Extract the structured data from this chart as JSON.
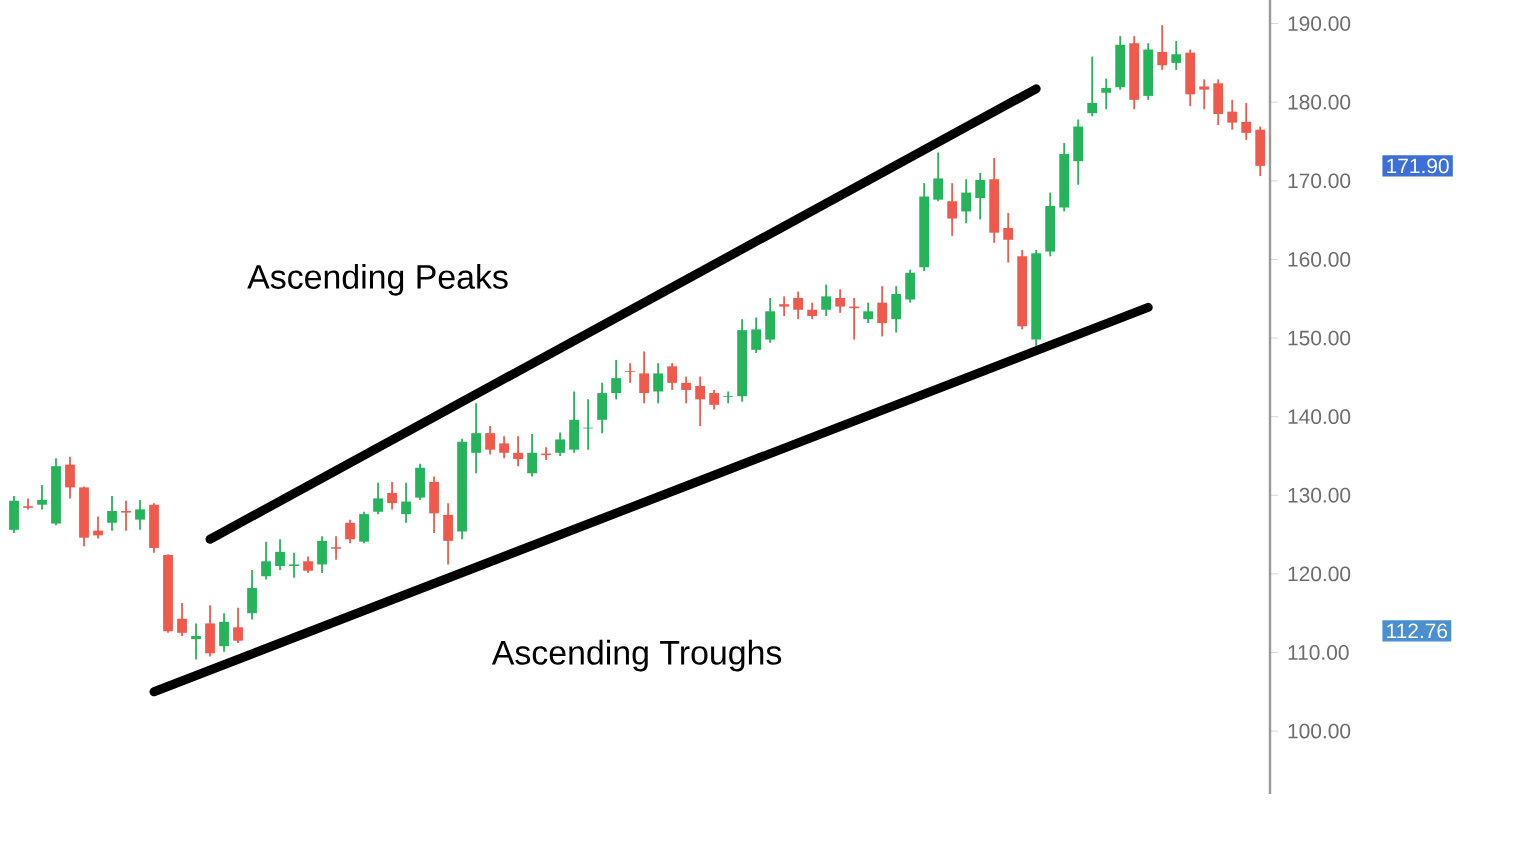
{
  "chart_data": {
    "type": "candlestick",
    "categories": [
      null,
      null,
      null,
      null,
      null,
      null,
      null,
      null,
      null,
      null,
      null,
      null,
      null,
      null,
      null,
      null,
      null,
      null,
      null,
      null,
      null,
      null,
      null,
      null,
      null,
      null,
      null,
      null,
      null,
      null,
      null,
      null,
      null,
      null,
      null,
      null,
      null,
      null,
      null,
      null,
      null,
      null,
      null,
      null,
      null,
      null,
      null,
      null,
      null,
      null,
      null,
      null,
      null,
      null,
      null,
      null,
      null,
      null,
      null,
      null,
      null,
      null,
      null,
      null,
      null,
      null,
      null,
      null,
      null,
      null,
      null,
      null,
      null,
      null,
      null,
      null,
      null,
      null,
      null,
      null,
      null,
      null,
      null,
      null,
      null,
      null,
      null,
      null,
      null,
      null
    ],
    "ohlc": [
      [
        125.6,
        129.9,
        125.2,
        129.3
      ],
      [
        128.6,
        129.6,
        128.2,
        128.4
      ],
      [
        128.8,
        131.3,
        128.2,
        129.4
      ],
      [
        126.4,
        134.7,
        126.2,
        133.7
      ],
      [
        133.9,
        134.9,
        129.6,
        131.0
      ],
      [
        131.0,
        131.1,
        123.5,
        124.6
      ],
      [
        125.5,
        127.3,
        124.5,
        124.9
      ],
      [
        126.5,
        129.9,
        125.5,
        128.0
      ],
      [
        128.0,
        129.3,
        125.5,
        127.8
      ],
      [
        126.9,
        129.4,
        125.6,
        128.2
      ],
      [
        128.8,
        129.0,
        122.7,
        123.3
      ],
      [
        122.4,
        122.5,
        112.5,
        112.7
      ],
      [
        114.3,
        116.3,
        112.1,
        112.5
      ],
      [
        111.7,
        113.7,
        109.1,
        112.1
      ],
      [
        113.7,
        116.0,
        109.5,
        109.9
      ],
      [
        110.8,
        115.0,
        110.1,
        113.9
      ],
      [
        113.2,
        115.7,
        111.2,
        111.5
      ],
      [
        115.0,
        120.5,
        114.2,
        118.2
      ],
      [
        119.7,
        124.1,
        119.3,
        121.6
      ],
      [
        121.0,
        124.4,
        120.5,
        122.8
      ],
      [
        121.0,
        122.7,
        119.5,
        121.2
      ],
      [
        121.6,
        122.2,
        120.1,
        120.4
      ],
      [
        121.2,
        124.8,
        120.1,
        124.2
      ],
      [
        123.4,
        124.8,
        121.8,
        123.2
      ],
      [
        126.5,
        126.9,
        123.9,
        124.4
      ],
      [
        124.1,
        127.9,
        123.9,
        127.6
      ],
      [
        127.9,
        131.6,
        127.6,
        129.6
      ],
      [
        130.3,
        131.7,
        128.2,
        129.0
      ],
      [
        127.6,
        131.6,
        126.5,
        129.2
      ],
      [
        129.7,
        134.0,
        129.4,
        133.5
      ],
      [
        131.7,
        132.4,
        125.2,
        127.7
      ],
      [
        127.5,
        129.0,
        121.2,
        124.2
      ],
      [
        125.4,
        137.2,
        124.4,
        136.8
      ],
      [
        135.4,
        141.7,
        132.8,
        137.9
      ],
      [
        137.9,
        138.8,
        135.2,
        135.8
      ],
      [
        136.6,
        137.5,
        134.7,
        135.4
      ],
      [
        135.4,
        137.5,
        133.7,
        134.6
      ],
      [
        132.8,
        137.8,
        132.4,
        135.4
      ],
      [
        135.3,
        136.1,
        134.5,
        135.1
      ],
      [
        135.4,
        138.0,
        135.0,
        137.1
      ],
      [
        135.8,
        143.2,
        135.4,
        139.6
      ],
      [
        138.5,
        142.2,
        135.8,
        138.6
      ],
      [
        139.6,
        144.3,
        137.9,
        143.0
      ],
      [
        143.0,
        147.2,
        142.2,
        144.9
      ],
      [
        145.8,
        146.8,
        144.3,
        145.7
      ],
      [
        145.5,
        148.3,
        141.7,
        143.0
      ],
      [
        143.2,
        146.8,
        141.7,
        145.5
      ],
      [
        146.4,
        146.8,
        143.4,
        144.3
      ],
      [
        144.3,
        145.1,
        141.7,
        143.4
      ],
      [
        143.9,
        145.1,
        138.8,
        142.2
      ],
      [
        143.0,
        143.4,
        140.9,
        141.5
      ],
      [
        142.5,
        143.2,
        141.7,
        142.6
      ],
      [
        142.6,
        152.4,
        141.9,
        151.0
      ],
      [
        148.5,
        152.6,
        148.1,
        151.1
      ],
      [
        149.8,
        155.1,
        149.4,
        153.4
      ],
      [
        154.3,
        155.3,
        152.8,
        154.0
      ],
      [
        155.1,
        155.9,
        152.4,
        153.6
      ],
      [
        153.6,
        154.5,
        152.4,
        152.8
      ],
      [
        153.6,
        156.8,
        152.8,
        155.3
      ],
      [
        155.1,
        156.2,
        153.2,
        154.0
      ],
      [
        154.0,
        155.1,
        149.8,
        153.8
      ],
      [
        152.4,
        154.5,
        151.9,
        153.4
      ],
      [
        154.5,
        156.6,
        150.2,
        151.9
      ],
      [
        152.4,
        156.6,
        150.7,
        155.6
      ],
      [
        154.9,
        158.7,
        154.5,
        158.3
      ],
      [
        159.0,
        169.7,
        158.5,
        168.0
      ],
      [
        167.6,
        173.6,
        167.4,
        170.3
      ],
      [
        167.4,
        169.7,
        163.0,
        165.2
      ],
      [
        166.1,
        170.2,
        164.6,
        168.5
      ],
      [
        167.8,
        171.0,
        165.1,
        170.1
      ],
      [
        170.2,
        172.9,
        162.1,
        163.4
      ],
      [
        164.0,
        165.9,
        159.6,
        162.5
      ],
      [
        160.4,
        161.2,
        151.1,
        151.5
      ],
      [
        149.8,
        161.2,
        148.9,
        160.8
      ],
      [
        161.0,
        168.5,
        160.4,
        166.8
      ],
      [
        166.6,
        174.8,
        166.1,
        173.4
      ],
      [
        172.5,
        177.8,
        169.5,
        176.9
      ],
      [
        178.6,
        185.8,
        178.2,
        179.9
      ],
      [
        181.2,
        183.0,
        179.1,
        181.8
      ],
      [
        181.9,
        188.4,
        181.6,
        187.3
      ],
      [
        187.5,
        188.4,
        179.1,
        180.3
      ],
      [
        180.8,
        187.5,
        180.3,
        186.7
      ],
      [
        186.4,
        189.8,
        184.1,
        184.7
      ],
      [
        185.0,
        187.8,
        184.1,
        186.1
      ],
      [
        186.3,
        186.7,
        179.5,
        181.0
      ],
      [
        182.0,
        182.9,
        179.1,
        181.6
      ],
      [
        182.4,
        182.9,
        177.1,
        178.5
      ],
      [
        178.8,
        180.3,
        176.5,
        177.4
      ],
      [
        177.5,
        179.9,
        175.2,
        176.1
      ],
      [
        176.5,
        176.9,
        170.6,
        171.9
      ]
    ],
    "colors": [
      "#26b45a",
      "#ef5a4d",
      "#26b45a",
      "#26b45a",
      "#ef5a4d",
      "#ef5a4d",
      "#ef5a4d",
      "#26b45a",
      "#ef5a4d",
      "#26b45a",
      "#ef5a4d",
      "#ef5a4d",
      "#ef5a4d",
      "#26b45a",
      "#ef5a4d",
      "#26b45a",
      "#ef5a4d",
      "#26b45a",
      "#26b45a",
      "#26b45a",
      "#26b45a",
      "#ef5a4d",
      "#26b45a",
      "#ef5a4d",
      "#ef5a4d",
      "#26b45a",
      "#26b45a",
      "#ef5a4d",
      "#26b45a",
      "#26b45a",
      "#ef5a4d",
      "#ef5a4d",
      "#26b45a",
      "#26b45a",
      "#ef5a4d",
      "#ef5a4d",
      "#ef5a4d",
      "#26b45a",
      "#ef5a4d",
      "#26b45a",
      "#26b45a",
      "#26b45a",
      "#26b45a",
      "#26b45a",
      "#ef5a4d",
      "#ef5a4d",
      "#26b45a",
      "#ef5a4d",
      "#ef5a4d",
      "#ef5a4d",
      "#ef5a4d",
      "#26b45a",
      "#26b45a",
      "#26b45a",
      "#26b45a",
      "#ef5a4d",
      "#ef5a4d",
      "#ef5a4d",
      "#26b45a",
      "#ef5a4d",
      "#ef5a4d",
      "#26b45a",
      "#ef5a4d",
      "#26b45a",
      "#26b45a",
      "#26b45a",
      "#26b45a",
      "#ef5a4d",
      "#26b45a",
      "#26b45a",
      "#ef5a4d",
      "#ef5a4d",
      "#ef5a4d",
      "#26b45a",
      "#26b45a",
      "#26b45a",
      "#26b45a",
      "#26b45a",
      "#26b45a",
      "#26b45a",
      "#ef5a4d",
      "#26b45a",
      "#ef5a4d",
      "#26b45a",
      "#ef5a4d",
      "#ef5a4d",
      "#ef5a4d",
      "#ef5a4d",
      "#ef5a4d",
      "#ef5a4d"
    ],
    "series": [
      {
        "type": "line",
        "values": [
          null,
          null,
          null,
          null,
          null,
          null,
          null,
          null,
          null,
          null,
          null,
          null,
          null,
          null,
          124.4,
          null,
          null,
          null,
          null,
          null,
          null,
          null,
          null,
          null,
          null,
          null,
          null,
          null,
          null,
          null,
          null,
          null,
          null,
          null,
          null,
          null,
          null,
          null,
          null,
          null,
          null,
          null,
          null,
          null,
          null,
          null,
          null,
          null,
          null,
          null,
          null,
          null,
          null,
          null,
          null,
          null,
          null,
          null,
          null,
          null,
          null,
          null,
          null,
          null,
          null,
          null,
          null,
          null,
          null,
          null,
          null,
          null,
          null,
          181.7,
          null,
          null,
          null,
          null,
          null,
          null,
          null,
          null,
          null,
          null,
          null,
          null,
          null,
          null,
          null,
          null
        ],
        "color": "#000000"
      },
      {
        "type": "line",
        "values": [
          null,
          null,
          null,
          null,
          null,
          null,
          null,
          null,
          null,
          null,
          105.0,
          null,
          null,
          null,
          null,
          null,
          null,
          null,
          null,
          null,
          null,
          null,
          null,
          null,
          null,
          null,
          null,
          null,
          null,
          null,
          null,
          null,
          null,
          null,
          null,
          null,
          null,
          null,
          null,
          null,
          null,
          null,
          null,
          null,
          null,
          null,
          null,
          null,
          null,
          null,
          null,
          null,
          null,
          null,
          null,
          null,
          null,
          null,
          null,
          null,
          null,
          null,
          null,
          null,
          null,
          null,
          null,
          null,
          null,
          null,
          null,
          null,
          null,
          null,
          null,
          null,
          null,
          null,
          null,
          null,
          null,
          153.9,
          null,
          null,
          null,
          null,
          null,
          null,
          null,
          null
        ],
        "color": "#000000"
      }
    ],
    "ylim": [
      92,
      193
    ],
    "yticks": [
      {
        "value": 100,
        "label": "100.00"
      },
      {
        "value": 110,
        "label": "110.00"
      },
      {
        "value": 120,
        "label": "120.00"
      },
      {
        "value": 130,
        "label": "130.00"
      },
      {
        "value": 140,
        "label": "140.00"
      },
      {
        "value": 150,
        "label": "150.00"
      },
      {
        "value": 160,
        "label": "160.00"
      },
      {
        "value": 170,
        "label": "170.00"
      },
      {
        "value": 180,
        "label": "180.00"
      },
      {
        "value": 190,
        "label": "190.00"
      }
    ],
    "tick_labels": "y",
    "annotations": [
      "Ascending Peaks",
      "Ascending Troughs",
      "171.90",
      "112.76"
    ]
  }
}
